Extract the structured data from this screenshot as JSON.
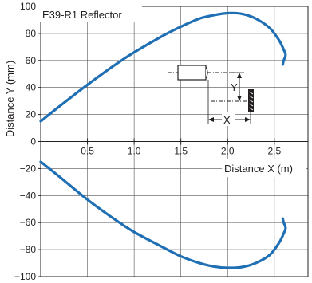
{
  "chart_data": {
    "type": "line",
    "title": "E39-R1 Reflector",
    "xlabel": "Distance X (m)",
    "ylabel": "Distance Y (mm)",
    "xlim": [
      0,
      2.86
    ],
    "ylim": [
      -100,
      100
    ],
    "x_ticks": [
      0.5,
      1.0,
      1.5,
      2.0,
      2.5
    ],
    "x_tick_labels": [
      "0.5",
      "1.0",
      "1.5",
      "2.0",
      "2.5"
    ],
    "y_ticks": [
      100,
      80,
      60,
      40,
      20,
      0,
      -20,
      -40,
      -60,
      -80,
      -100
    ],
    "y_tick_labels": [
      "100",
      "80",
      "60",
      "40",
      "20",
      "0",
      "−20",
      "−40",
      "−60",
      "−80",
      "−100"
    ],
    "grid": true,
    "series": [
      {
        "color": "#1f6fb4",
        "x": [
          0.0,
          0.2,
          0.5,
          0.8,
          1.0,
          1.3,
          1.5,
          1.7,
          1.85,
          2.0,
          2.15,
          2.3,
          2.45,
          2.55,
          2.6,
          2.62,
          2.6,
          2.59
        ],
        "y": [
          15,
          26,
          42,
          57,
          66,
          78,
          85,
          91,
          93.5,
          95,
          94.5,
          91,
          84,
          75,
          68,
          64,
          60,
          57
        ]
      },
      {
        "color": "#1f6fb4",
        "x": [
          0.0,
          0.2,
          0.5,
          0.8,
          1.0,
          1.3,
          1.5,
          1.7,
          1.85,
          2.0,
          2.15,
          2.3,
          2.45,
          2.55,
          2.6,
          2.62,
          2.6,
          2.59
        ],
        "y": [
          -15,
          -26,
          -43,
          -58,
          -67,
          -78,
          -85,
          -90,
          -92.5,
          -93.5,
          -93,
          -90,
          -84,
          -75,
          -68,
          -64,
          -60,
          -57
        ]
      }
    ]
  },
  "inset": {
    "x_label": "X",
    "y_label": "Y"
  }
}
